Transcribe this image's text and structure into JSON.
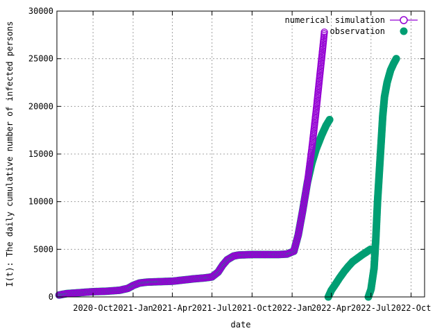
{
  "chart_data": {
    "type": "scatter",
    "xlabel": "date",
    "ylabel": "I(t): The daily cumulative number of infected persons",
    "xlim": [
      "2020-07-10",
      "2022-11-01"
    ],
    "ylim": [
      0,
      30000
    ],
    "grid": true,
    "legend_position": "top-right",
    "x_ticks": [
      {
        "date": "2020-10-01",
        "label": "2020-Oct"
      },
      {
        "date": "2021-01-01",
        "label": "2021-Jan"
      },
      {
        "date": "2021-04-01",
        "label": "2021-Apr"
      },
      {
        "date": "2021-07-01",
        "label": "2021-Jul"
      },
      {
        "date": "2021-10-01",
        "label": "2021-Oct"
      },
      {
        "date": "2022-01-01",
        "label": "2022-Jan"
      },
      {
        "date": "2022-04-01",
        "label": "2022-Apr"
      },
      {
        "date": "2022-07-01",
        "label": "2022-Jul"
      },
      {
        "date": "2022-10-01",
        "label": "2022-Oct"
      }
    ],
    "y_ticks": [
      0,
      5000,
      10000,
      15000,
      20000,
      25000,
      30000
    ],
    "series": [
      {
        "name": "numerical simulation",
        "marker": "open-circle",
        "color": "#9400d3",
        "points": [
          [
            "2020-07-15",
            200
          ],
          [
            "2020-08-01",
            350
          ],
          [
            "2020-09-01",
            450
          ],
          [
            "2020-10-01",
            550
          ],
          [
            "2020-11-01",
            600
          ],
          [
            "2020-12-01",
            700
          ],
          [
            "2020-12-20",
            900
          ],
          [
            "2021-01-01",
            1200
          ],
          [
            "2021-01-15",
            1450
          ],
          [
            "2021-02-01",
            1550
          ],
          [
            "2021-03-01",
            1600
          ],
          [
            "2021-04-01",
            1650
          ],
          [
            "2021-05-01",
            1800
          ],
          [
            "2021-05-20",
            1900
          ],
          [
            "2021-06-15",
            2000
          ],
          [
            "2021-07-01",
            2100
          ],
          [
            "2021-07-15",
            2600
          ],
          [
            "2021-07-25",
            3300
          ],
          [
            "2021-08-05",
            3900
          ],
          [
            "2021-08-20",
            4300
          ],
          [
            "2021-09-01",
            4400
          ],
          [
            "2021-10-01",
            4450
          ],
          [
            "2021-11-01",
            4450
          ],
          [
            "2021-12-01",
            4450
          ],
          [
            "2021-12-20",
            4500
          ],
          [
            "2022-01-05",
            4800
          ],
          [
            "2022-01-15",
            6500
          ],
          [
            "2022-01-25",
            9000
          ],
          [
            "2022-02-05",
            12000
          ],
          [
            "2022-02-15",
            15500
          ],
          [
            "2022-02-25",
            19500
          ],
          [
            "2022-03-05",
            23000
          ],
          [
            "2022-03-12",
            26000
          ],
          [
            "2022-03-16",
            27800
          ]
        ]
      },
      {
        "name": "observation",
        "marker": "filled-circle",
        "color": "#009e73",
        "segments": [
          [
            [
              "2020-07-15",
              200
            ],
            [
              "2020-08-01",
              350
            ],
            [
              "2020-09-01",
              450
            ],
            [
              "2020-10-01",
              550
            ],
            [
              "2020-11-01",
              600
            ],
            [
              "2020-12-01",
              700
            ],
            [
              "2020-12-20",
              900
            ],
            [
              "2021-01-01",
              1200
            ],
            [
              "2021-01-15",
              1450
            ],
            [
              "2021-02-01",
              1550
            ],
            [
              "2021-03-01",
              1600
            ],
            [
              "2021-04-01",
              1650
            ],
            [
              "2021-05-01",
              1800
            ],
            [
              "2021-05-20",
              1900
            ],
            [
              "2021-06-15",
              2000
            ],
            [
              "2021-07-01",
              2100
            ],
            [
              "2021-07-15",
              2600
            ],
            [
              "2021-07-25",
              3300
            ],
            [
              "2021-08-05",
              3900
            ],
            [
              "2021-08-20",
              4300
            ],
            [
              "2021-09-01",
              4400
            ],
            [
              "2021-10-01",
              4450
            ],
            [
              "2021-11-01",
              4450
            ],
            [
              "2021-12-01",
              4450
            ],
            [
              "2021-12-20",
              4500
            ],
            [
              "2022-01-05",
              4800
            ],
            [
              "2022-01-15",
              6500
            ],
            [
              "2022-01-25",
              9000
            ],
            [
              "2022-02-05",
              12000
            ],
            [
              "2022-02-15",
              14000
            ],
            [
              "2022-02-25",
              15500
            ],
            [
              "2022-03-10",
              17000
            ],
            [
              "2022-03-20",
              18000
            ],
            [
              "2022-03-28",
              18600
            ]
          ],
          [
            [
              "2022-03-25",
              0
            ],
            [
              "2022-04-01",
              700
            ],
            [
              "2022-04-10",
              1300
            ],
            [
              "2022-04-20",
              2000
            ],
            [
              "2022-05-01",
              2700
            ],
            [
              "2022-05-10",
              3200
            ],
            [
              "2022-05-20",
              3700
            ],
            [
              "2022-06-01",
              4100
            ],
            [
              "2022-06-10",
              4400
            ],
            [
              "2022-06-20",
              4700
            ],
            [
              "2022-06-30",
              5000
            ]
          ],
          [
            [
              "2022-06-25",
              0
            ],
            [
              "2022-07-01",
              800
            ],
            [
              "2022-07-08",
              3000
            ],
            [
              "2022-07-12",
              6000
            ],
            [
              "2022-07-16",
              10000
            ],
            [
              "2022-07-20",
              13000
            ],
            [
              "2022-07-24",
              16000
            ],
            [
              "2022-07-28",
              19000
            ],
            [
              "2022-08-01",
              21000
            ],
            [
              "2022-08-07",
              22500
            ],
            [
              "2022-08-15",
              23800
            ],
            [
              "2022-08-22",
              24500
            ],
            [
              "2022-08-28",
              25000
            ]
          ]
        ]
      }
    ]
  }
}
